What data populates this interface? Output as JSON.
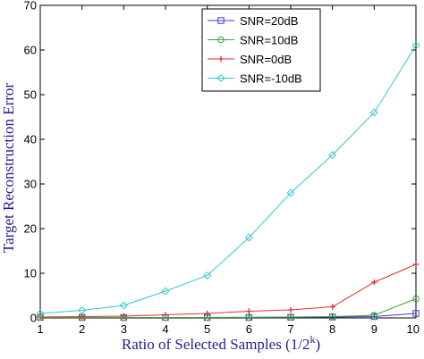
{
  "chart_data": {
    "type": "line",
    "title": "",
    "xlabel": "Ratio of Selected Samples (1/2",
    "xlabel_sup": "k",
    "xlabel_close": ")",
    "ylabel": "Target Reconstruction Error",
    "xlim": [
      1,
      10
    ],
    "ylim": [
      0,
      70
    ],
    "x": [
      1,
      2,
      3,
      4,
      5,
      6,
      7,
      8,
      9,
      10
    ],
    "x_ticks": [
      "1",
      "2",
      "3",
      "4",
      "5",
      "6",
      "7",
      "8",
      "9",
      "10"
    ],
    "y_ticks": [
      "0",
      "10",
      "20",
      "30",
      "40",
      "50",
      "60",
      "70"
    ],
    "grid": false,
    "legend_position": "top-center",
    "series": [
      {
        "name": "SNR=20dB",
        "color": "#3b3bd6",
        "marker": "square",
        "values": [
          0.1,
          0.1,
          0.1,
          0.1,
          0.1,
          0.1,
          0.15,
          0.2,
          0.3,
          1.0
        ]
      },
      {
        "name": "SNR=10dB",
        "color": "#3fa43f",
        "marker": "circle",
        "values": [
          0.1,
          0.1,
          0.1,
          0.1,
          0.1,
          0.15,
          0.2,
          0.3,
          0.6,
          4.3
        ]
      },
      {
        "name": "SNR=0dB",
        "color": "#e03030",
        "marker": "plus",
        "values": [
          0.2,
          0.3,
          0.4,
          0.7,
          1.0,
          1.5,
          1.8,
          2.5,
          8.0,
          12.0
        ]
      },
      {
        "name": "SNR=-10dB",
        "color": "#35c6cf",
        "marker": "diamond",
        "values": [
          1.0,
          1.7,
          2.8,
          6.0,
          9.5,
          18.0,
          28.0,
          36.5,
          46.0,
          61.0
        ]
      }
    ]
  }
}
